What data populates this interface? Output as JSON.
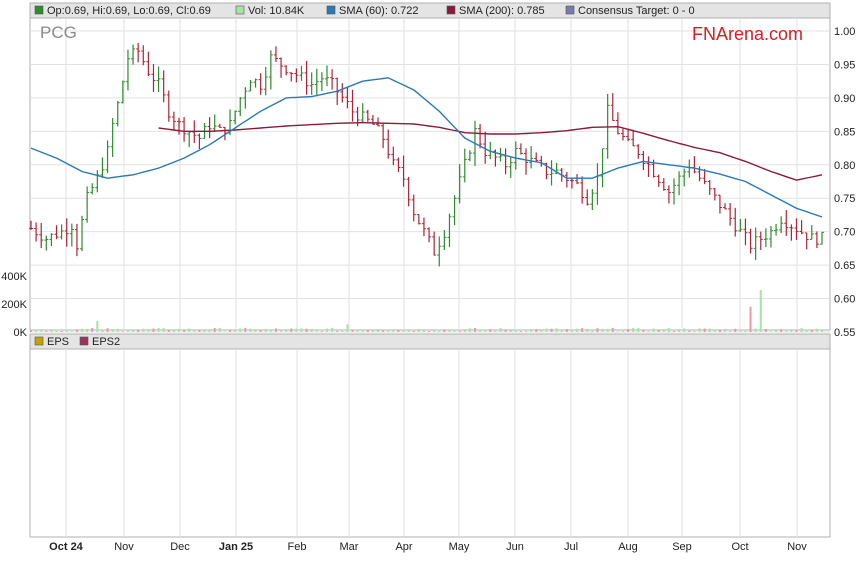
{
  "chart_data": {
    "type": "ohlc",
    "ticker": "PCG",
    "brand": "FNArena.com",
    "legend": [
      {
        "key": "open",
        "text": "Op:0.69, Hi:0.69, Lo:0.69, Cl:0.69",
        "color": "#2e8b2e"
      },
      {
        "key": "vol",
        "text": "Vol: 10.84K",
        "color": "#a6e3a6"
      },
      {
        "key": "sma60",
        "text": "SMA (60): 0.722",
        "color": "#2a7ab8"
      },
      {
        "key": "sma200",
        "text": "SMA (200): 0.785",
        "color": "#8b1a3a"
      },
      {
        "key": "consensus",
        "text": "Consensus Target: 0 - 0",
        "color": "#7a7ab0"
      }
    ],
    "lower_legend": [
      {
        "key": "eps",
        "text": "EPS",
        "color": "#c8a000"
      },
      {
        "key": "eps2",
        "text": "EPS2",
        "color": "#a03060"
      }
    ],
    "y_price_ticks": [
      "1.00",
      "0.95",
      "0.90",
      "0.85",
      "0.80",
      "0.75",
      "0.70",
      "0.65",
      "0.60",
      "0.55"
    ],
    "y_volume_ticks": [
      "400K",
      "200K",
      "0K"
    ],
    "ylim": [
      0.55,
      1.0
    ],
    "x_ticks": [
      {
        "label": "Oct 24",
        "bold": true
      },
      {
        "label": "Nov",
        "bold": false
      },
      {
        "label": "Dec",
        "bold": false
      },
      {
        "label": "Jan 25",
        "bold": true
      },
      {
        "label": "Feb",
        "bold": false
      },
      {
        "label": "Mar",
        "bold": false
      },
      {
        "label": "Apr",
        "bold": false
      },
      {
        "label": "May",
        "bold": false
      },
      {
        "label": "Jun",
        "bold": false
      },
      {
        "label": "Jul",
        "bold": false
      },
      {
        "label": "Aug",
        "bold": false
      },
      {
        "label": "Sep",
        "bold": false
      },
      {
        "label": "Oct",
        "bold": false
      },
      {
        "label": "Nov",
        "bold": false
      }
    ],
    "close_anchors": [
      [
        0,
        0.705
      ],
      [
        3,
        0.69
      ],
      [
        6,
        0.7
      ],
      [
        8,
        0.71
      ],
      [
        9,
        0.68
      ],
      [
        11,
        0.75
      ],
      [
        13,
        0.78
      ],
      [
        15,
        0.82
      ],
      [
        16,
        0.86
      ],
      [
        17,
        0.89
      ],
      [
        19,
        0.96
      ],
      [
        21,
        0.97
      ],
      [
        23,
        0.94
      ],
      [
        25,
        0.92
      ],
      [
        27,
        0.88
      ],
      [
        29,
        0.86
      ],
      [
        31,
        0.85
      ],
      [
        33,
        0.84
      ],
      [
        35,
        0.86
      ],
      [
        37,
        0.85
      ],
      [
        39,
        0.86
      ],
      [
        41,
        0.9
      ],
      [
        43,
        0.93
      ],
      [
        45,
        0.92
      ],
      [
        47,
        0.96
      ],
      [
        49,
        0.95
      ],
      [
        51,
        0.94
      ],
      [
        53,
        0.93
      ],
      [
        55,
        0.92
      ],
      [
        57,
        0.93
      ],
      [
        59,
        0.92
      ],
      [
        61,
        0.9
      ],
      [
        63,
        0.88
      ],
      [
        65,
        0.87
      ],
      [
        67,
        0.86
      ],
      [
        69,
        0.84
      ],
      [
        71,
        0.8
      ],
      [
        73,
        0.78
      ],
      [
        75,
        0.73
      ],
      [
        77,
        0.7
      ],
      [
        79,
        0.67
      ],
      [
        81,
        0.7
      ],
      [
        83,
        0.75
      ],
      [
        85,
        0.8
      ],
      [
        87,
        0.85
      ],
      [
        89,
        0.82
      ],
      [
        91,
        0.81
      ],
      [
        93,
        0.8
      ],
      [
        95,
        0.82
      ],
      [
        97,
        0.81
      ],
      [
        99,
        0.8
      ],
      [
        101,
        0.79
      ],
      [
        103,
        0.79
      ],
      [
        105,
        0.78
      ],
      [
        107,
        0.77
      ],
      [
        109,
        0.75
      ],
      [
        111,
        0.78
      ],
      [
        113,
        0.88
      ],
      [
        115,
        0.85
      ],
      [
        117,
        0.83
      ],
      [
        119,
        0.82
      ],
      [
        121,
        0.8
      ],
      [
        123,
        0.78
      ],
      [
        125,
        0.76
      ],
      [
        127,
        0.78
      ],
      [
        129,
        0.8
      ],
      [
        131,
        0.78
      ],
      [
        133,
        0.76
      ],
      [
        135,
        0.74
      ],
      [
        137,
        0.72
      ],
      [
        139,
        0.7
      ],
      [
        141,
        0.68
      ],
      [
        143,
        0.69
      ],
      [
        145,
        0.7
      ],
      [
        147,
        0.72
      ],
      [
        149,
        0.71
      ],
      [
        151,
        0.7
      ],
      [
        153,
        0.69
      ],
      [
        155,
        0.69
      ]
    ],
    "sma60_anchors": [
      [
        0,
        0.825
      ],
      [
        5,
        0.81
      ],
      [
        10,
        0.79
      ],
      [
        15,
        0.78
      ],
      [
        20,
        0.785
      ],
      [
        25,
        0.795
      ],
      [
        30,
        0.81
      ],
      [
        35,
        0.83
      ],
      [
        40,
        0.855
      ],
      [
        45,
        0.88
      ],
      [
        50,
        0.9
      ],
      [
        55,
        0.902
      ],
      [
        60,
        0.91
      ],
      [
        65,
        0.925
      ],
      [
        70,
        0.93
      ],
      [
        75,
        0.912
      ],
      [
        80,
        0.88
      ],
      [
        85,
        0.84
      ],
      [
        90,
        0.82
      ],
      [
        95,
        0.81
      ],
      [
        100,
        0.803
      ],
      [
        105,
        0.78
      ],
      [
        110,
        0.78
      ],
      [
        115,
        0.795
      ],
      [
        120,
        0.805
      ],
      [
        125,
        0.8
      ],
      [
        130,
        0.795
      ],
      [
        135,
        0.786
      ],
      [
        140,
        0.775
      ],
      [
        145,
        0.755
      ],
      [
        150,
        0.735
      ],
      [
        155,
        0.722
      ]
    ],
    "sma200_anchors": [
      [
        25,
        0.855
      ],
      [
        30,
        0.85
      ],
      [
        35,
        0.85
      ],
      [
        40,
        0.852
      ],
      [
        45,
        0.855
      ],
      [
        50,
        0.858
      ],
      [
        55,
        0.86
      ],
      [
        60,
        0.862
      ],
      [
        65,
        0.863
      ],
      [
        70,
        0.862
      ],
      [
        75,
        0.861
      ],
      [
        80,
        0.856
      ],
      [
        85,
        0.848
      ],
      [
        90,
        0.846
      ],
      [
        95,
        0.846
      ],
      [
        100,
        0.848
      ],
      [
        105,
        0.851
      ],
      [
        110,
        0.856
      ],
      [
        115,
        0.857
      ],
      [
        120,
        0.847
      ],
      [
        125,
        0.836
      ],
      [
        130,
        0.826
      ],
      [
        135,
        0.818
      ],
      [
        140,
        0.805
      ],
      [
        145,
        0.79
      ],
      [
        150,
        0.777
      ],
      [
        155,
        0.785
      ]
    ],
    "days": 156,
    "volume_spikes": [
      [
        141,
        180
      ],
      [
        143,
        300
      ],
      [
        62,
        55
      ],
      [
        13,
        80
      ]
    ]
  }
}
